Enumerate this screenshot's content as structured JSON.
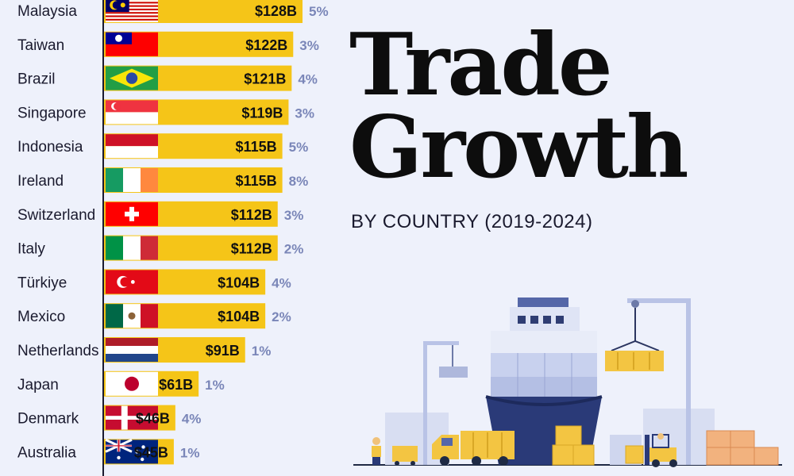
{
  "title": {
    "line1": "Trade",
    "line2": "Growth"
  },
  "subtitle": "BY COUNTRY (2019-2024)",
  "colors": {
    "bar": "#f5c518",
    "background": "#eef1fb",
    "axis": "#1a1a2e",
    "pct": "#7a86b8"
  },
  "chart_data": {
    "type": "bar",
    "orientation": "horizontal",
    "title": "Trade Growth by Country (2019-2024)",
    "categories": [
      "Malaysia",
      "Taiwan",
      "Brazil",
      "Singapore",
      "Indonesia",
      "Ireland",
      "Switzerland",
      "Italy",
      "Türkiye",
      "Mexico",
      "Netherlands",
      "Japan",
      "Denmark",
      "Australia"
    ],
    "values": [
      128,
      122,
      121,
      119,
      115,
      115,
      112,
      112,
      104,
      104,
      91,
      61,
      46,
      45
    ],
    "value_labels": [
      "$128B",
      "$122B",
      "$121B",
      "$119B",
      "$115B",
      "$115B",
      "$112B",
      "$112B",
      "$104B",
      "$104B",
      "$91B",
      "$61B",
      "$46B",
      "$45B"
    ],
    "growth_labels": [
      "5%",
      "3%",
      "4%",
      "3%",
      "5%",
      "8%",
      "3%",
      "2%",
      "4%",
      "2%",
      "1%",
      "1%",
      "4%",
      "1%"
    ],
    "flags": [
      "malaysia-flag",
      "taiwan-flag",
      "brazil-flag",
      "singapore-flag",
      "indonesia-flag",
      "ireland-flag",
      "switzerland-flag",
      "italy-flag",
      "turkiye-flag",
      "mexico-flag",
      "netherlands-flag",
      "japan-flag",
      "denmark-flag",
      "australia-flag"
    ],
    "unit": "USD billions"
  }
}
